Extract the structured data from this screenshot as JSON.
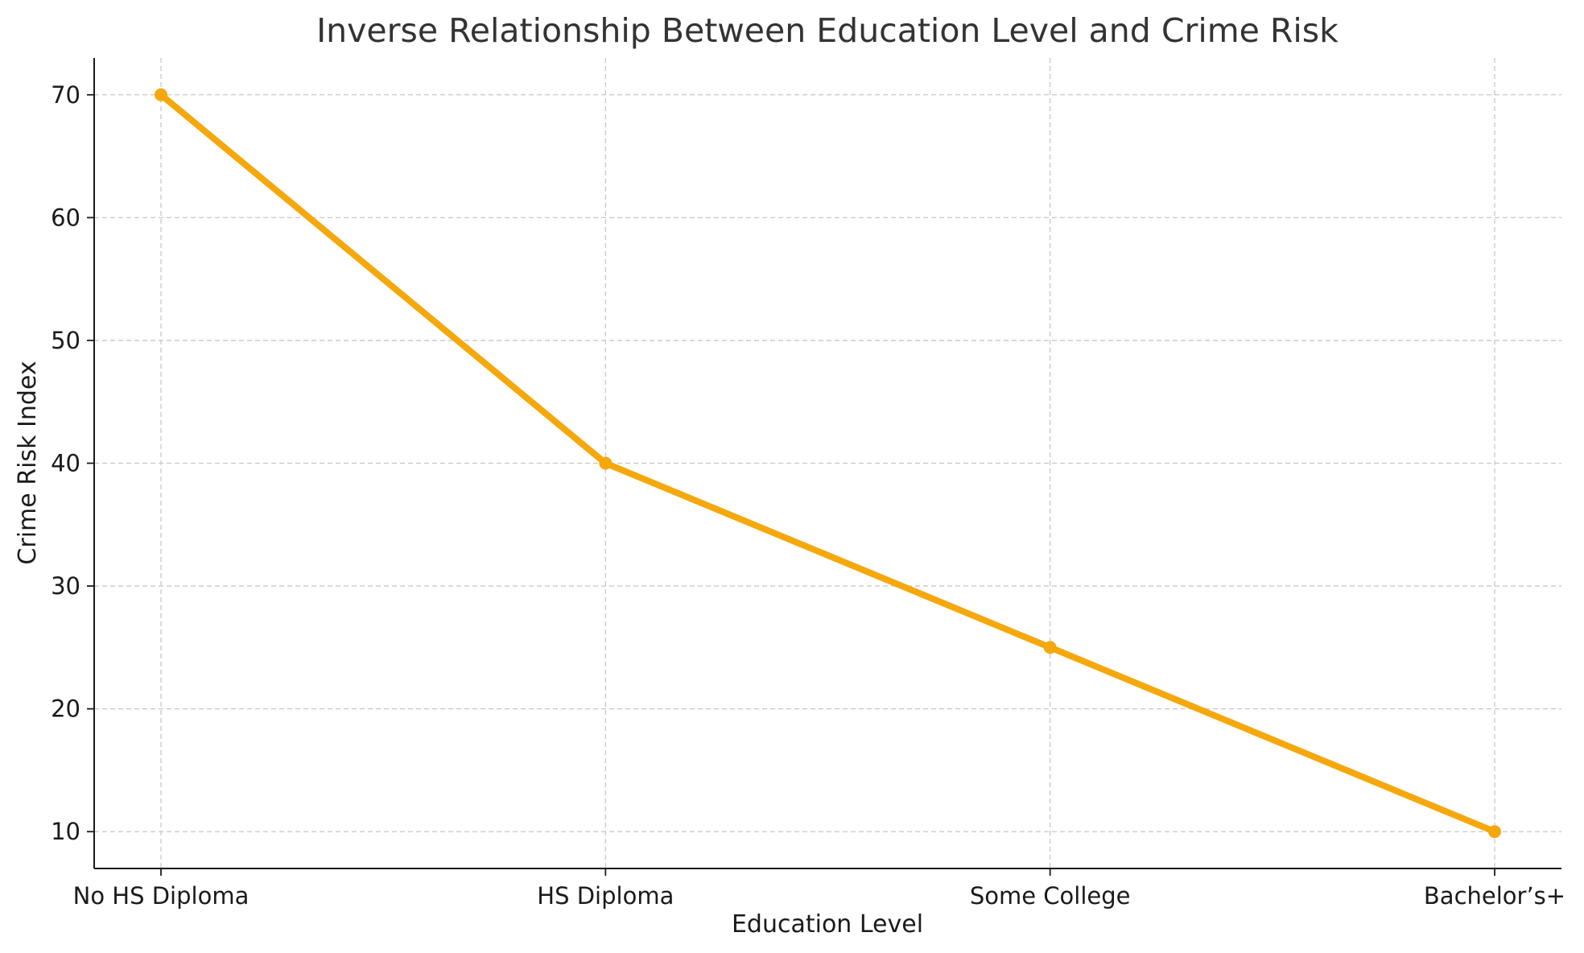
{
  "chart_data": {
    "type": "line",
    "title": "Inverse Relationship Between Education Level and Crime Risk",
    "xlabel": "Education Level",
    "ylabel": "Crime Risk Index",
    "categories": [
      "No HS Diploma",
      "HS Diploma",
      "Some College",
      "Bachelor’s+"
    ],
    "series": [
      {
        "values": [
          70,
          40,
          25,
          10
        ],
        "color": "#F5A80C",
        "marker": "circle"
      }
    ],
    "ylim": [
      7,
      73
    ],
    "yticks": [
      10,
      20,
      30,
      40,
      50,
      60,
      70
    ],
    "grid": true,
    "legend": "none"
  }
}
